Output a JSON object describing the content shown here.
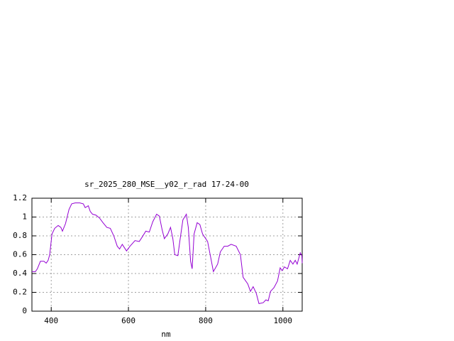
{
  "chart_data": {
    "type": "line",
    "title": "sr_2025_280_MSE__y02_r_rad 17-24-00",
    "x_label": "nm",
    "x": [
      350,
      359,
      364,
      372,
      381,
      387,
      392,
      396,
      402,
      409,
      418,
      425,
      429,
      437,
      446,
      453,
      462,
      474,
      483,
      488,
      496,
      501,
      507,
      516,
      525,
      534,
      544,
      553,
      562,
      571,
      577,
      584,
      595,
      604,
      617,
      628,
      636,
      645,
      654,
      663,
      673,
      680,
      687,
      693,
      702,
      709,
      715,
      720,
      728,
      733,
      741,
      750,
      755,
      761,
      765,
      770,
      778,
      785,
      792,
      805,
      814,
      820,
      831,
      838,
      848,
      857,
      866,
      879,
      890,
      897,
      909,
      916,
      923,
      931,
      938,
      949,
      956,
      962,
      968,
      977,
      986,
      993,
      998,
      1004,
      1012,
      1019,
      1026,
      1032,
      1037,
      1041,
      1045,
      1049,
      1050
    ],
    "series": [
      {
        "color": "#9400d3",
        "values": [
          0.42,
          0.42,
          0.45,
          0.53,
          0.53,
          0.51,
          0.54,
          0.6,
          0.82,
          0.88,
          0.91,
          0.89,
          0.85,
          0.93,
          1.08,
          1.14,
          1.15,
          1.15,
          1.14,
          1.1,
          1.12,
          1.06,
          1.03,
          1.02,
          0.99,
          0.94,
          0.89,
          0.88,
          0.8,
          0.69,
          0.66,
          0.71,
          0.64,
          0.69,
          0.75,
          0.74,
          0.79,
          0.85,
          0.84,
          0.95,
          1.03,
          1.01,
          0.87,
          0.77,
          0.82,
          0.89,
          0.77,
          0.6,
          0.59,
          0.74,
          0.97,
          1.03,
          0.89,
          0.53,
          0.45,
          0.82,
          0.94,
          0.92,
          0.82,
          0.74,
          0.55,
          0.42,
          0.5,
          0.63,
          0.69,
          0.69,
          0.71,
          0.69,
          0.6,
          0.36,
          0.29,
          0.21,
          0.26,
          0.19,
          0.08,
          0.09,
          0.12,
          0.11,
          0.21,
          0.25,
          0.32,
          0.46,
          0.43,
          0.47,
          0.45,
          0.54,
          0.5,
          0.54,
          0.5,
          0.56,
          0.62,
          0.59,
          0.51
        ]
      }
    ],
    "xlim": [
      350,
      1050
    ],
    "xticks": [
      400,
      600,
      800,
      1000
    ],
    "ylim": [
      0,
      1.2
    ],
    "yticks": [
      0,
      0.2,
      0.4,
      0.6,
      0.8,
      1,
      1.2
    ],
    "grid": true
  }
}
